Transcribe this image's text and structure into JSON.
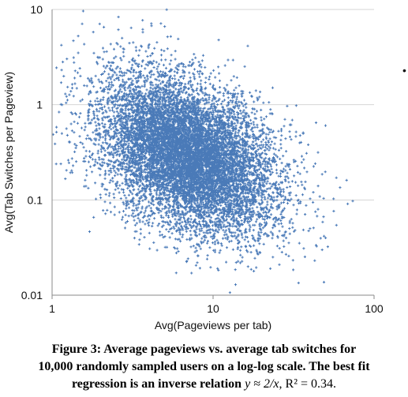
{
  "chart_data": {
    "type": "scatter",
    "title": "",
    "xlabel": "Avg(Pageviews per tab)",
    "ylabel": "Avg(Tab Switches per Pageview)",
    "x_scale": "log",
    "y_scale": "log",
    "xlim": [
      1,
      100
    ],
    "ylim": [
      0.01,
      10
    ],
    "x_ticks": [
      "1",
      "10",
      "100"
    ],
    "y_ticks": [
      "10",
      "1",
      "0.1",
      "0.01"
    ],
    "grid": "horizontal",
    "marker_color": "#4a7ab8",
    "marker": "plus",
    "n_points": 10000,
    "cluster_summary": {
      "center_x": 7,
      "center_y": 0.3,
      "fit": "y ≈ 2/x",
      "r_squared": 0.34
    },
    "series": [
      {
        "x": [
          1.5,
          2.0,
          2.5,
          3.0,
          3.5,
          4.0,
          5.0,
          6.0,
          7.0,
          8.0,
          10.0,
          12.0,
          15.0,
          20.0,
          25.0,
          30.0,
          40.0,
          50.0
        ],
        "y": [
          2.0,
          1.5,
          1.2,
          1.0,
          0.8,
          0.7,
          0.5,
          0.4,
          0.3,
          0.25,
          0.2,
          0.17,
          0.13,
          0.1,
          0.08,
          0.06,
          0.05,
          0.04
        ]
      }
    ]
  },
  "caption": {
    "line1": "Figure 3: Average pageviews vs. average tab switches for",
    "line2": "10,000 randomly sampled users on a log-log scale. The best fit",
    "line3_text": "regression is an inverse relation ",
    "line3_math": "y ≈ 2/x",
    "line3_sep": ", ",
    "line3_r2": "R² = 0.34",
    "line3_end": "."
  },
  "stray_mark": "•"
}
